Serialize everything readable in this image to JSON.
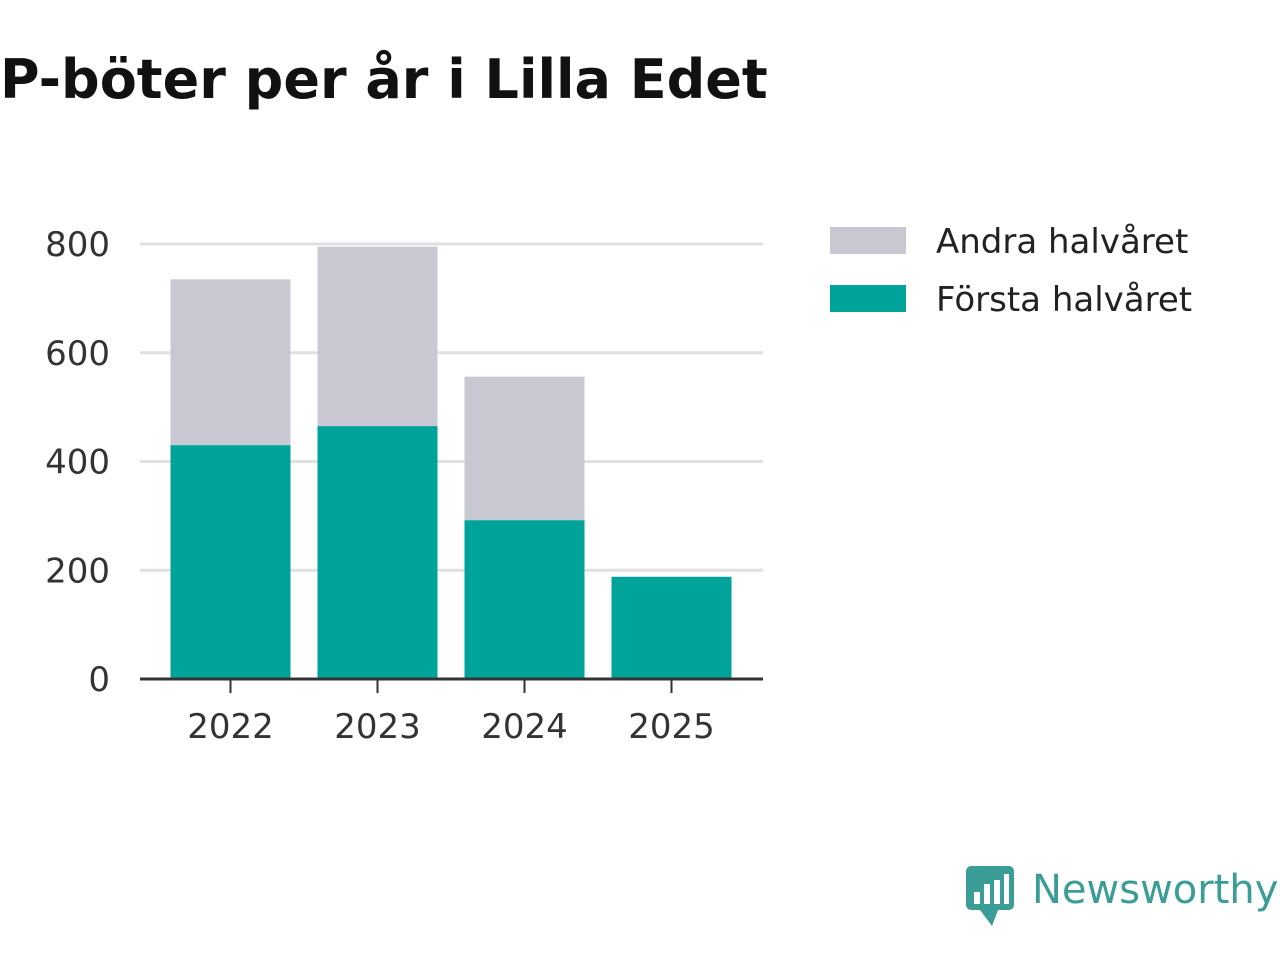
{
  "colors": {
    "first_half": "#00a39a",
    "second_half": "#c8c8d2",
    "grid": "#e0e0e0",
    "axis": "#333333",
    "brand": "#3a9d96"
  },
  "brand": {
    "name": "Newsworthy",
    "icon": "newsworthy-logo-icon"
  },
  "chart_data": {
    "type": "bar",
    "stacked": true,
    "title": "P-böter per år i Lilla Edet",
    "xlabel": "",
    "ylabel": "",
    "categories": [
      "2022",
      "2023",
      "2024",
      "2025"
    ],
    "series": [
      {
        "name": "Första halvåret",
        "values": [
          430,
          465,
          292,
          188
        ]
      },
      {
        "name": "Andra halvåret",
        "values": [
          305,
          330,
          264,
          0
        ]
      }
    ],
    "ylim": [
      0,
      800
    ],
    "yticks": [
      0,
      200,
      400,
      600,
      800
    ],
    "grid": true,
    "legend": {
      "position": "right",
      "entries": [
        "Andra halvåret",
        "Första halvåret"
      ]
    }
  }
}
